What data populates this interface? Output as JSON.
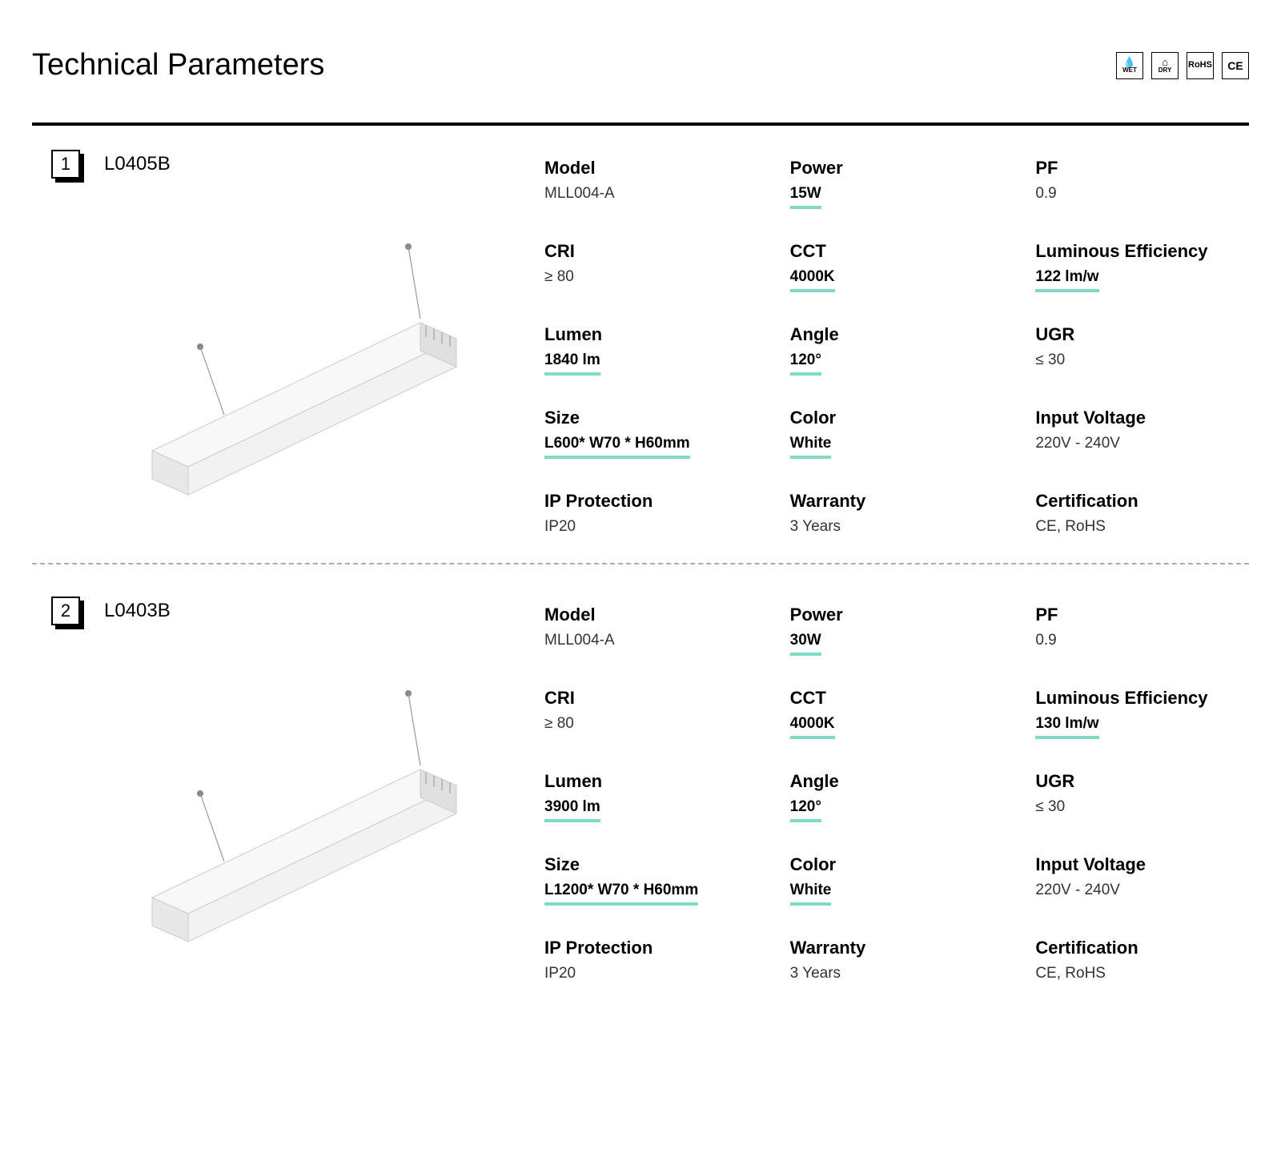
{
  "page": {
    "title": "Technical Parameters",
    "badges": [
      "WET",
      "DRY",
      "RoHS",
      "CE"
    ],
    "highlight_color": "#7fd9c4",
    "text_color": "#000000",
    "bg_color": "#ffffff"
  },
  "products": [
    {
      "index": "1",
      "sku": "L0405B",
      "specs": [
        {
          "label": "Model",
          "value": "MLL004-A",
          "highlight": false
        },
        {
          "label": "Power",
          "value": "15W",
          "highlight": true
        },
        {
          "label": "PF",
          "value": "0.9",
          "highlight": false
        },
        {
          "label": "CRI",
          "value": "≥ 80",
          "highlight": false
        },
        {
          "label": "CCT",
          "value": "4000K",
          "highlight": true
        },
        {
          "label": "Luminous Efficiency",
          "value": "122 lm/w",
          "highlight": true
        },
        {
          "label": "Lumen",
          "value": "1840 lm",
          "highlight": true
        },
        {
          "label": "Angle",
          "value": "120°",
          "highlight": true
        },
        {
          "label": "UGR",
          "value": "≤ 30",
          "highlight": false
        },
        {
          "label": "Size",
          "value": "L600* W70 * H60mm",
          "highlight": true
        },
        {
          "label": "Color",
          "value": "White",
          "highlight": true
        },
        {
          "label": "Input Voltage",
          "value": "220V - 240V",
          "highlight": false
        },
        {
          "label": "IP Protection",
          "value": "IP20",
          "highlight": false
        },
        {
          "label": "Warranty",
          "value": "3 Years",
          "highlight": false
        },
        {
          "label": "Certification",
          "value": "CE, RoHS",
          "highlight": false
        }
      ]
    },
    {
      "index": "2",
      "sku": "L0403B",
      "specs": [
        {
          "label": "Model",
          "value": "MLL004-A",
          "highlight": false
        },
        {
          "label": "Power",
          "value": "30W",
          "highlight": true
        },
        {
          "label": "PF",
          "value": "0.9",
          "highlight": false
        },
        {
          "label": "CRI",
          "value": "≥ 80",
          "highlight": false
        },
        {
          "label": "CCT",
          "value": "4000K",
          "highlight": true
        },
        {
          "label": "Luminous Efficiency",
          "value": "130 lm/w",
          "highlight": true
        },
        {
          "label": "Lumen",
          "value": "3900 lm",
          "highlight": true
        },
        {
          "label": "Angle",
          "value": "120°",
          "highlight": true
        },
        {
          "label": "UGR",
          "value": "≤ 30",
          "highlight": false
        },
        {
          "label": "Size",
          "value": "L1200* W70 * H60mm",
          "highlight": true
        },
        {
          "label": "Color",
          "value": "White",
          "highlight": true
        },
        {
          "label": "Input Voltage",
          "value": "220V - 240V",
          "highlight": false
        },
        {
          "label": "IP Protection",
          "value": "IP20",
          "highlight": false
        },
        {
          "label": "Warranty",
          "value": "3 Years",
          "highlight": false
        },
        {
          "label": "Certification",
          "value": "CE, RoHS",
          "highlight": false
        }
      ]
    }
  ]
}
